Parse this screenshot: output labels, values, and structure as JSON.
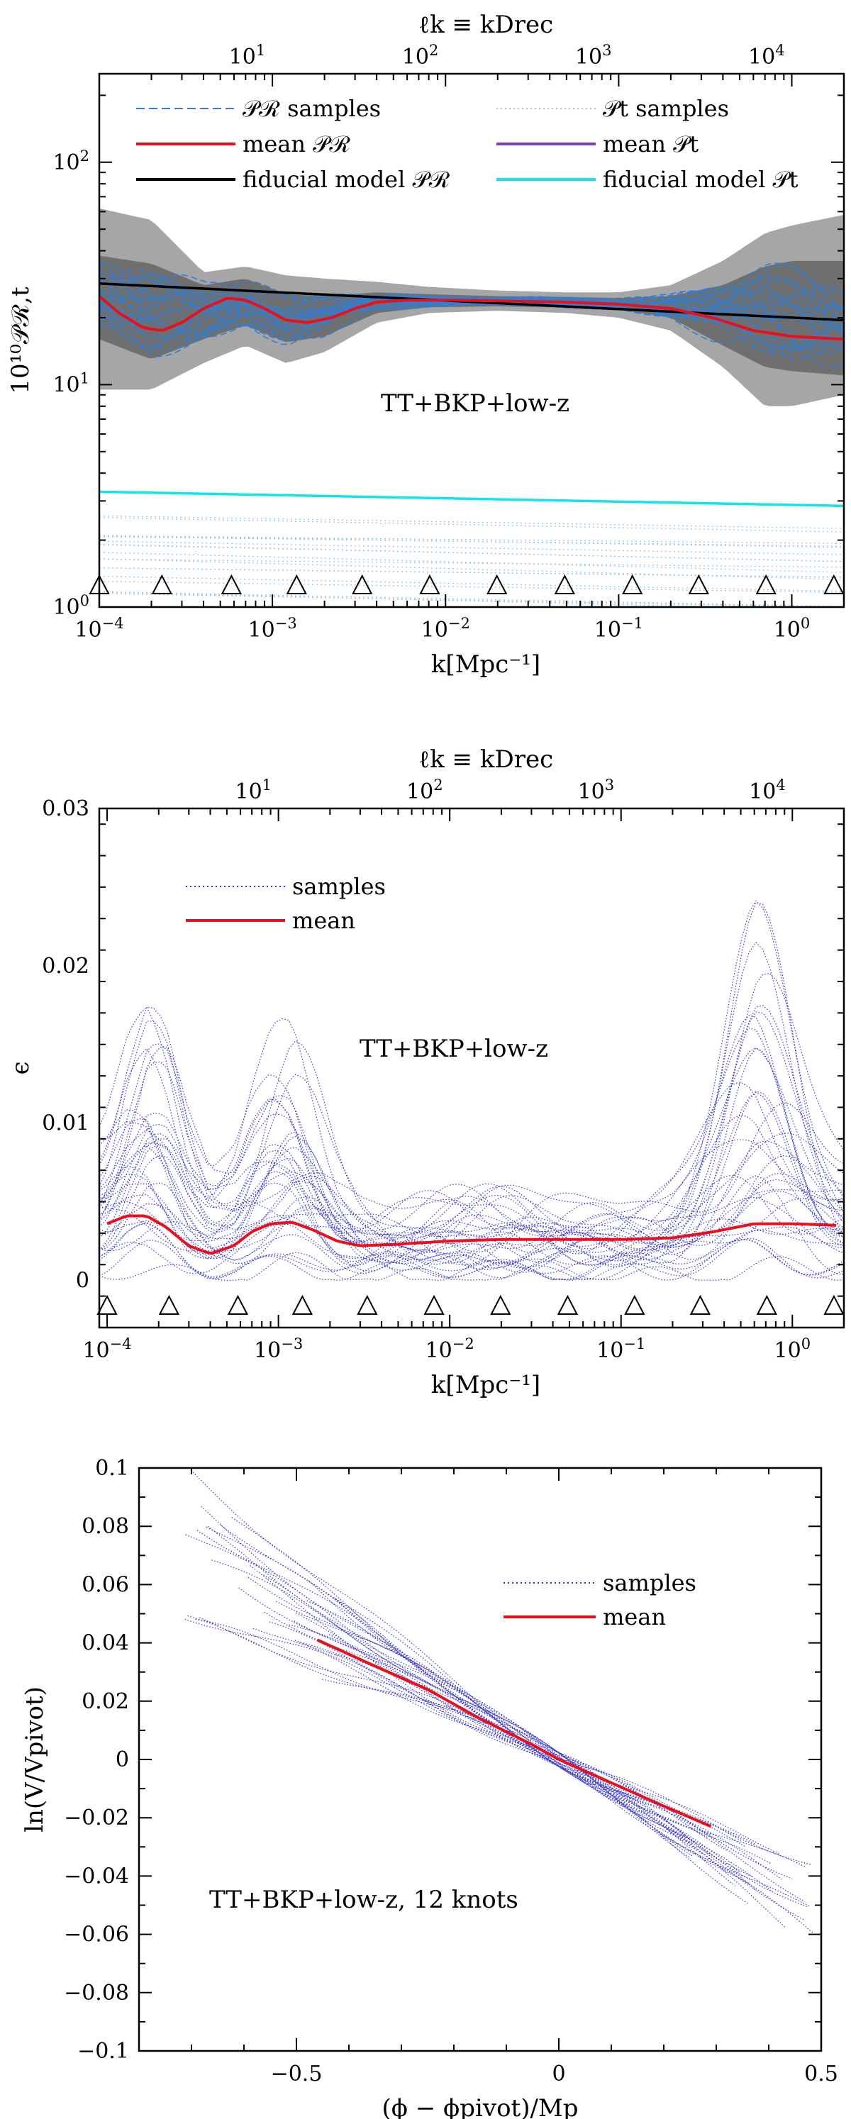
{
  "chart_data": [
    {
      "id": "p1",
      "type": "line",
      "title": "",
      "xlabel": "k[Mpc⁻¹]",
      "ylabel": "10¹⁰𝒫ℛ,t",
      "top_xlabel": "ℓk ≡ kDrec",
      "xscale": "log",
      "yscale": "log",
      "xlim": [
        0.0001,
        2.0
      ],
      "ylim": [
        1,
        250
      ],
      "x_ticks": [
        {
          "v": 0.0001,
          "base": "10",
          "exp": "−4"
        },
        {
          "v": 0.001,
          "base": "10",
          "exp": "−3"
        },
        {
          "v": 0.01,
          "base": "10",
          "exp": "−2"
        },
        {
          "v": 0.1,
          "base": "10",
          "exp": "−1"
        },
        {
          "v": 1,
          "base": "10",
          "exp": "0"
        }
      ],
      "y_ticks": [
        {
          "v": 1,
          "base": "10",
          "exp": "0"
        },
        {
          "v": 10,
          "base": "10",
          "exp": "1"
        },
        {
          "v": 100,
          "base": "10",
          "exp": "2"
        }
      ],
      "top_ticks": [
        {
          "v": 0.000714,
          "base": "10",
          "exp": "1"
        },
        {
          "v": 0.00714,
          "base": "10",
          "exp": "2"
        },
        {
          "v": 0.0714,
          "base": "10",
          "exp": "3"
        },
        {
          "v": 0.714,
          "base": "10",
          "exp": "4"
        }
      ],
      "knots": [
        0.0001,
        0.00023,
        0.00058,
        0.00138,
        0.0033,
        0.0081,
        0.0198,
        0.0488,
        0.12,
        0.29,
        0.71,
        1.75
      ],
      "annotation": "TT+BKP+low-z",
      "legend": [
        {
          "label": "𝒫ℛ samples",
          "color": "#2f7fd6",
          "style": "dashed"
        },
        {
          "label": "mean 𝒫ℛ",
          "color": "#e8101c",
          "style": "solid"
        },
        {
          "label": "fiducial model 𝒫ℛ",
          "color": "#000000",
          "style": "solid"
        },
        {
          "label": "𝒫t samples",
          "color": "#9cc7e6",
          "style": "dotted"
        },
        {
          "label": "mean 𝒫t",
          "color": "#7b3fc4",
          "style": "solid"
        },
        {
          "label": "fiducial model 𝒫t",
          "color": "#14e3ee",
          "style": "solid"
        }
      ],
      "series": [
        {
          "name": "fiducial model 𝒫ℛ",
          "x": [
            0.0001,
            2.0
          ],
          "y": [
            28.5,
            19.5
          ]
        },
        {
          "name": "mean 𝒫ℛ",
          "x": [
            0.0001,
            0.00013,
            0.00018,
            0.00023,
            0.0003,
            0.0004,
            0.00055,
            0.0007,
            0.0009,
            0.0012,
            0.0016,
            0.0022,
            0.003,
            0.004,
            0.006,
            0.01,
            0.02,
            0.05,
            0.1,
            0.2,
            0.35,
            0.6,
            1.0,
            2.0
          ],
          "y": [
            25,
            21,
            18,
            17.5,
            19,
            22,
            24.5,
            24,
            22,
            19.5,
            19,
            20,
            22,
            23.5,
            24,
            24,
            23.8,
            23.5,
            23,
            22,
            20,
            17.5,
            16.5,
            16
          ]
        },
        {
          "name": "fiducial model 𝒫t",
          "x": [
            0.0001,
            2.0
          ],
          "y": [
            3.3,
            2.85
          ]
        }
      ],
      "band_outer": {
        "x": [
          0.0001,
          0.0002,
          0.0004,
          0.0007,
          0.0012,
          0.002,
          0.004,
          0.008,
          0.02,
          0.05,
          0.1,
          0.2,
          0.4,
          0.7,
          1.0,
          2.0
        ],
        "lo": [
          9.5,
          9.5,
          12.5,
          15,
          12.5,
          14,
          19,
          21,
          21.5,
          21,
          20,
          17.5,
          12,
          8,
          8,
          9
        ],
        "hi": [
          62,
          55,
          32,
          34,
          31,
          30,
          29,
          27.5,
          26.5,
          26,
          26,
          28,
          36,
          48,
          52,
          58
        ]
      },
      "band_inner": {
        "x": [
          0.0001,
          0.0002,
          0.0004,
          0.0007,
          0.0012,
          0.002,
          0.004,
          0.008,
          0.02,
          0.05,
          0.1,
          0.2,
          0.4,
          0.7,
          1.0,
          2.0
        ],
        "lo": [
          16,
          13,
          16,
          18.5,
          15.5,
          16.5,
          21,
          22.3,
          22.5,
          22.2,
          21.8,
          20,
          15,
          12,
          11.5,
          11
        ],
        "hi": [
          38,
          35,
          28,
          30,
          25.5,
          25,
          26,
          25.5,
          25,
          24.8,
          24.5,
          25,
          28,
          34,
          36,
          36
        ]
      }
    },
    {
      "id": "p2",
      "type": "line",
      "title": "",
      "xlabel": "k[Mpc⁻¹]",
      "ylabel": "ϵ",
      "top_xlabel": "ℓk ≡ kDrec",
      "xscale": "log",
      "yscale": "linear",
      "xlim": [
        9e-05,
        2.0
      ],
      "ylim": [
        -0.003,
        0.03
      ],
      "x_ticks": [
        {
          "v": 0.0001,
          "base": "10",
          "exp": "−4"
        },
        {
          "v": 0.001,
          "base": "10",
          "exp": "−3"
        },
        {
          "v": 0.01,
          "base": "10",
          "exp": "−2"
        },
        {
          "v": 0.1,
          "base": "10",
          "exp": "−1"
        },
        {
          "v": 1,
          "base": "10",
          "exp": "0"
        }
      ],
      "y_ticks": [
        {
          "v": 0,
          "label": "0"
        },
        {
          "v": 0.01,
          "label": "0.01"
        },
        {
          "v": 0.02,
          "label": "0.02"
        },
        {
          "v": 0.03,
          "label": "0.03"
        }
      ],
      "top_ticks": [
        {
          "v": 0.000714,
          "base": "10",
          "exp": "1"
        },
        {
          "v": 0.00714,
          "base": "10",
          "exp": "2"
        },
        {
          "v": 0.0714,
          "base": "10",
          "exp": "3"
        },
        {
          "v": 0.714,
          "base": "10",
          "exp": "4"
        }
      ],
      "knots": [
        0.0001,
        0.00023,
        0.00058,
        0.00138,
        0.0033,
        0.0081,
        0.0198,
        0.0488,
        0.12,
        0.29,
        0.71,
        1.75
      ],
      "annotation": "TT+BKP+low-z",
      "legend": [
        {
          "label": "samples",
          "color": "#3333cc",
          "style": "dotted"
        },
        {
          "label": "mean",
          "color": "#e8101c",
          "style": "solid"
        }
      ],
      "series": [
        {
          "name": "mean",
          "x": [
            0.0001,
            0.00013,
            0.00017,
            0.00022,
            0.0003,
            0.0004,
            0.00055,
            0.0007,
            0.0009,
            0.0012,
            0.0016,
            0.0022,
            0.003,
            0.005,
            0.01,
            0.02,
            0.05,
            0.1,
            0.2,
            0.35,
            0.6,
            1.0,
            1.8
          ],
          "y": [
            0.0036,
            0.0041,
            0.0041,
            0.0034,
            0.0022,
            0.0017,
            0.0022,
            0.0031,
            0.0036,
            0.0037,
            0.0032,
            0.0025,
            0.0022,
            0.0023,
            0.0025,
            0.0026,
            0.0026,
            0.0026,
            0.0027,
            0.0031,
            0.0036,
            0.0036,
            0.0035
          ]
        }
      ]
    },
    {
      "id": "p3",
      "type": "line",
      "title": "",
      "xlabel": "(ϕ − ϕpivot)/Mp",
      "ylabel": "ln(V/Vpivot)",
      "xscale": "linear",
      "yscale": "linear",
      "xlim": [
        -0.8,
        0.5
      ],
      "ylim": [
        -0.1,
        0.1
      ],
      "x_ticks": [
        {
          "v": -0.5,
          "label": "−0.5"
        },
        {
          "v": 0,
          "label": "0"
        },
        {
          "v": 0.5,
          "label": "0.5"
        }
      ],
      "y_ticks": [
        {
          "v": -0.1,
          "label": "−0.1"
        },
        {
          "v": -0.08,
          "label": "−0.08"
        },
        {
          "v": -0.06,
          "label": "−0.06"
        },
        {
          "v": -0.04,
          "label": "−0.04"
        },
        {
          "v": -0.02,
          "label": "−0.02"
        },
        {
          "v": 0,
          "label": "0"
        },
        {
          "v": 0.02,
          "label": "0.02"
        },
        {
          "v": 0.04,
          "label": "0.04"
        },
        {
          "v": 0.06,
          "label": "0.06"
        },
        {
          "v": 0.08,
          "label": "0.08"
        },
        {
          "v": 0.1,
          "label": "0.1"
        }
      ],
      "annotation": "TT+BKP+low-z, 12 knots",
      "legend": [
        {
          "label": "samples",
          "color": "#3333cc",
          "style": "dotted"
        },
        {
          "label": "mean",
          "color": "#e8101c",
          "style": "solid"
        }
      ],
      "series": [
        {
          "name": "mean",
          "x": [
            -0.46,
            -0.35,
            -0.25,
            -0.15,
            -0.05,
            0,
            0.1,
            0.2,
            0.29
          ],
          "y": [
            0.041,
            0.032,
            0.024,
            0.014,
            0.005,
            0,
            -0.008,
            -0.016,
            -0.023
          ]
        }
      ]
    }
  ]
}
